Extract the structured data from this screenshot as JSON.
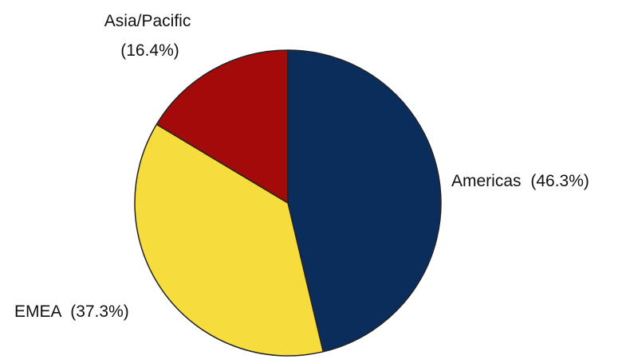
{
  "chart_data": {
    "type": "pie",
    "title": "",
    "start_angle_deg": 0,
    "direction": "clockwise",
    "slices": [
      {
        "name": "Americas",
        "percent_label": "(46.3%)",
        "value": 46.3,
        "color": "#0b2d5b"
      },
      {
        "name": "EMEA",
        "percent_label": "(37.3%)",
        "value": 37.3,
        "color": "#f6dc3c"
      },
      {
        "name": "Asia/Pacific",
        "percent_label": "(16.4%)",
        "value": 16.4,
        "color": "#a50a0a"
      }
    ]
  }
}
